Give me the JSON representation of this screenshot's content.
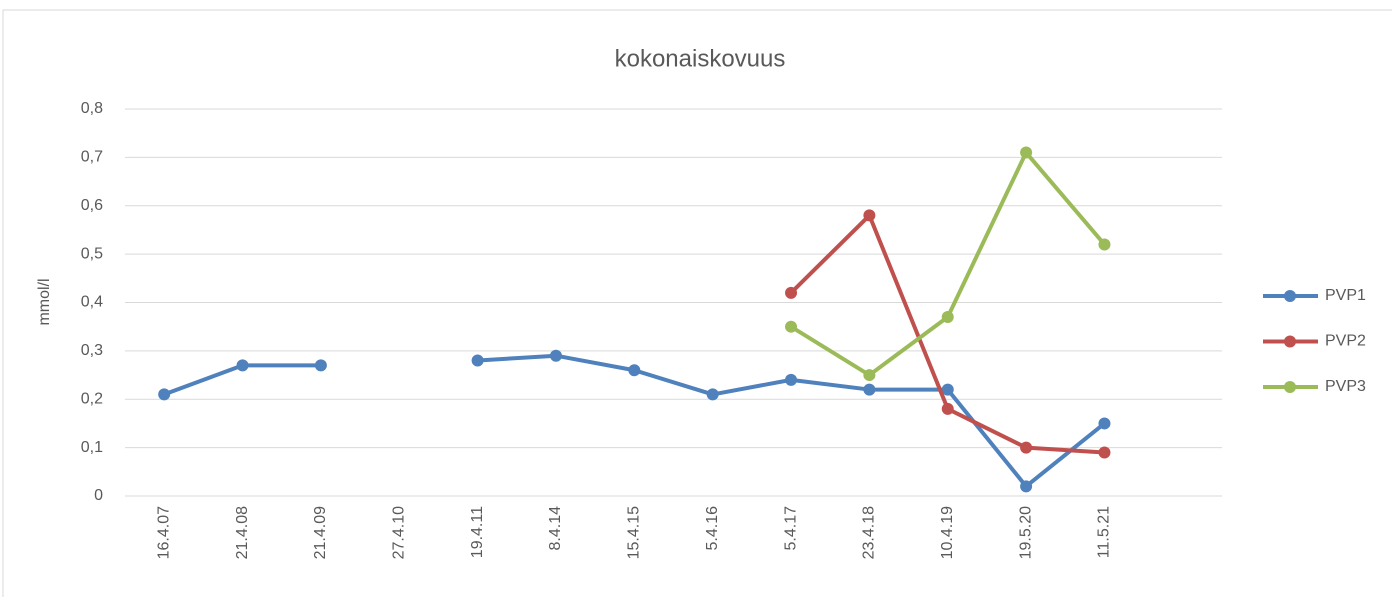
{
  "chart_data": {
    "type": "line",
    "title": "kokonaiskovuus",
    "y_label": "mmol/l",
    "categories": [
      "16.4.07",
      "21.4.08",
      "21.4.09",
      "27.4.10",
      "19.4.11",
      "8.4.14",
      "15.4.15",
      "5.4.16",
      "5.4.17",
      "23.4.18",
      "10.4.19",
      "19.5.20",
      "11.5.21",
      null
    ],
    "series": [
      {
        "name": "PVP1",
        "color": "#4f81bd",
        "values": [
          0.21,
          0.27,
          0.27,
          null,
          0.28,
          0.29,
          0.26,
          0.21,
          0.24,
          0.22,
          0.22,
          0.02,
          0.15,
          null
        ]
      },
      {
        "name": "PVP2",
        "color": "#c0504d",
        "values": [
          null,
          null,
          null,
          null,
          null,
          null,
          null,
          null,
          0.42,
          0.58,
          0.18,
          0.1,
          0.09,
          null
        ]
      },
      {
        "name": "PVP3",
        "color": "#9bbb59",
        "values": [
          null,
          null,
          null,
          null,
          null,
          null,
          null,
          null,
          0.35,
          0.25,
          0.37,
          0.71,
          0.52,
          null
        ]
      }
    ],
    "ylim": [
      0,
      0.8
    ],
    "yticks": [
      0,
      {
        "value": 0.1,
        "label": "0,1"
      },
      {
        "value": 0.2,
        "label": "0,2"
      },
      {
        "value": 0.3,
        "label": "0,3"
      },
      {
        "value": 0.4,
        "label": "0,4"
      },
      {
        "value": 0.5,
        "label": "0,5"
      },
      {
        "value": 0.6,
        "label": "0,6"
      },
      {
        "value": 0.7,
        "label": "0,7"
      },
      {
        "value": 0.8,
        "label": "0,8"
      }
    ],
    "grid": true,
    "legend": "right"
  }
}
